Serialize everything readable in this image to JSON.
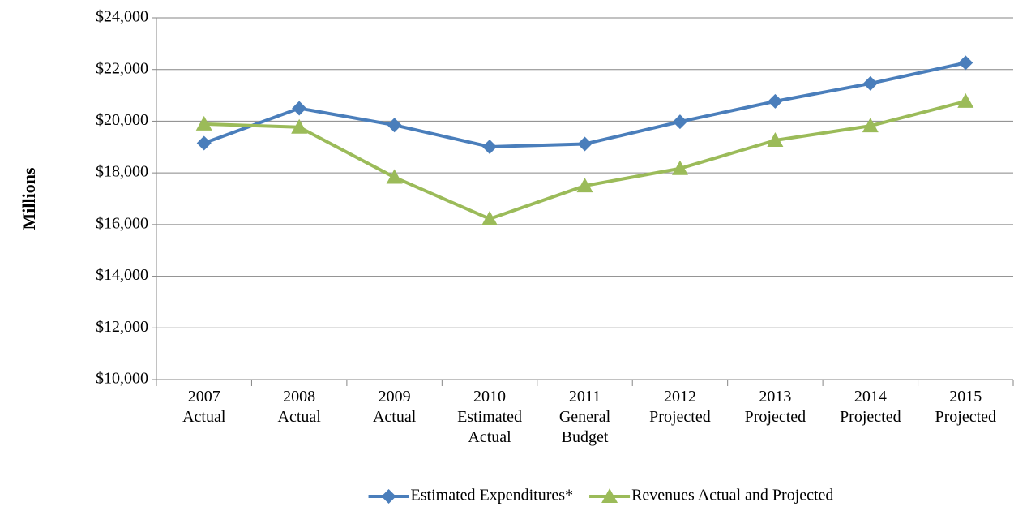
{
  "chart_data": {
    "type": "line",
    "y_label": "Millions",
    "categories": [
      "2007 Actual",
      "2008 Actual",
      "2009 Actual",
      "2010 Estimated Actual",
      "2011 General Budget",
      "2012 Projected",
      "2013 Projected",
      "2014 Projected",
      "2015 Projected"
    ],
    "series": [
      {
        "name": "Estimated Expenditures*",
        "color": "#4a7ebb",
        "marker": "diamond",
        "values": [
          19150,
          20500,
          19850,
          19010,
          19120,
          19980,
          20770,
          21460,
          22260
        ]
      },
      {
        "name": "Revenues Actual and Projected",
        "color": "#9bbb59",
        "marker": "triangle",
        "values": [
          19890,
          19770,
          17830,
          16220,
          17500,
          18170,
          19260,
          19820,
          20770
        ]
      }
    ],
    "ylim": [
      10000,
      24000
    ],
    "yticks": [
      {
        "value": 10000,
        "label": "$10,000"
      },
      {
        "value": 12000,
        "label": "$12,000"
      },
      {
        "value": 14000,
        "label": "$14,000"
      },
      {
        "value": 16000,
        "label": "$16,000"
      },
      {
        "value": 18000,
        "label": "$18,000"
      },
      {
        "value": 20000,
        "label": "$20,000"
      },
      {
        "value": 22000,
        "label": "$22,000"
      },
      {
        "value": 24000,
        "label": "$24,000"
      }
    ],
    "grid": true,
    "legend": "bottom"
  }
}
